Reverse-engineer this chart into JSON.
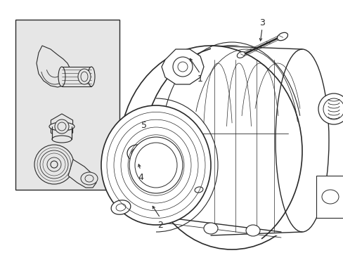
{
  "bg_color": "#ffffff",
  "line_color": "#2a2a2a",
  "box_fill": "#e8e8e8",
  "fig_width": 4.89,
  "fig_height": 3.6,
  "dpi": 100
}
